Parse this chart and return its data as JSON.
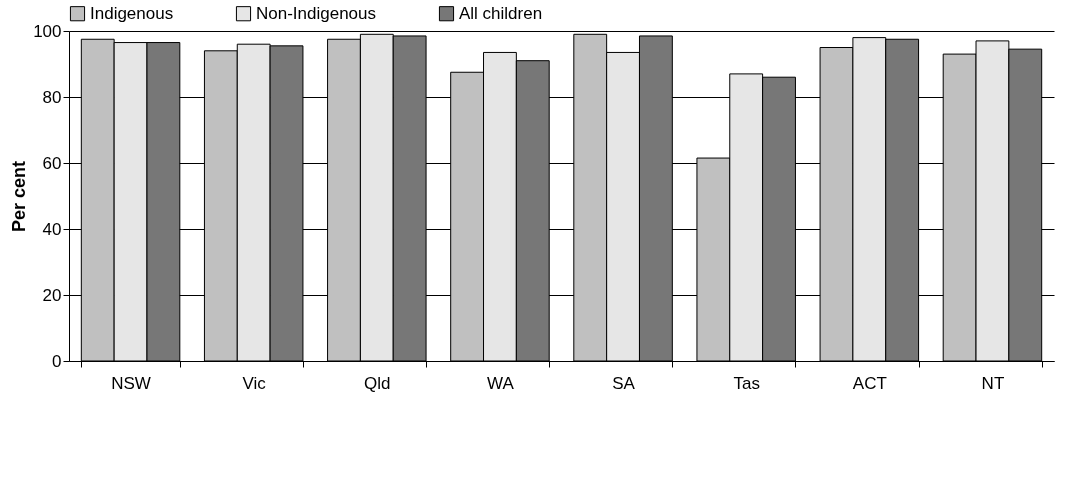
{
  "chart_data": {
    "type": "bar",
    "ylabel": "Per cent",
    "categories": [
      "NSW",
      "Vic",
      "Qld",
      "WA",
      "SA",
      "Tas",
      "ACT",
      "NT"
    ],
    "series": [
      {
        "name": "Indigenous",
        "color": "#c0c0c0",
        "values": [
          97.5,
          94,
          97.5,
          87.5,
          99,
          61.5,
          95,
          93
        ]
      },
      {
        "name": "Non-Indigenous",
        "color": "#e6e6e6",
        "values": [
          96.5,
          96,
          99,
          93.5,
          93.5,
          87,
          98,
          97
        ]
      },
      {
        "name": "All children",
        "color": "#777777",
        "values": [
          96.5,
          95.5,
          98.5,
          91,
          98.5,
          86,
          97.5,
          94.5
        ]
      }
    ],
    "ylim": [
      0,
      100
    ],
    "yticks": [
      0,
      20,
      40,
      60,
      80,
      100
    ],
    "grid": "y",
    "legend": "top"
  }
}
